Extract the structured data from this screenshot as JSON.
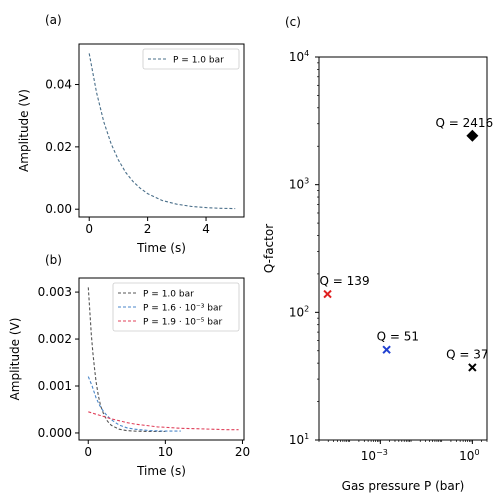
{
  "chart_data": [
    {
      "panel_label": "(a)",
      "type": "line",
      "xlabel": "Time (s)",
      "ylabel": "Amplitude (V)",
      "xlim": [
        -0.35,
        5.3
      ],
      "ylim": [
        -0.0025,
        0.053
      ],
      "xticks": [
        0,
        2,
        4
      ],
      "xtick_labels": [
        "0",
        "2",
        "4"
      ],
      "yticks": [
        0.0,
        0.02,
        0.04
      ],
      "ytick_labels": [
        "0.00",
        "0.02",
        "0.04"
      ],
      "legend_position": "upper-right",
      "series": [
        {
          "name": "P = 1.0 bar",
          "style": "dashed",
          "color": "#4a6f8a",
          "x": [
            0,
            0.25,
            0.5,
            0.75,
            1.0,
            1.25,
            1.5,
            1.75,
            2.0,
            2.5,
            3.0,
            3.5,
            4.0,
            4.5,
            5.0
          ],
          "y": [
            0.05,
            0.0375,
            0.028,
            0.021,
            0.0158,
            0.0118,
            0.0089,
            0.0067,
            0.005,
            0.0028,
            0.0016,
            0.0009,
            0.0005,
            0.0003,
            0.0002
          ]
        }
      ]
    },
    {
      "panel_label": "(b)",
      "type": "line",
      "xlabel": "Time (s)",
      "ylabel": "Amplitude (V)",
      "xlim": [
        -1.2,
        20.2
      ],
      "ylim": [
        -0.00015,
        0.0033
      ],
      "xticks": [
        0,
        10,
        20
      ],
      "xtick_labels": [
        "0",
        "10",
        "20"
      ],
      "yticks": [
        0.0,
        0.001,
        0.002,
        0.003
      ],
      "ytick_labels": [
        "0.000",
        "0.001",
        "0.002",
        "0.003"
      ],
      "legend_position": "upper-right",
      "series": [
        {
          "name": "P = 1.0 bar",
          "style": "dashed",
          "color": "#555555",
          "x": [
            0,
            0.2,
            0.4,
            0.6,
            0.8,
            1.0,
            1.3,
            1.6,
            2.0,
            2.5,
            3.0,
            4.0,
            5.0,
            6.0,
            8.0,
            10.0
          ],
          "y": [
            0.0031,
            0.0026,
            0.0021,
            0.0017,
            0.0014,
            0.0011,
            0.0008,
            0.00058,
            0.0004,
            0.00025,
            0.00016,
            8e-05,
            5e-05,
            4e-05,
            3e-05,
            3e-05
          ]
        },
        {
          "name": "P = 1.6 · 10⁻³ bar",
          "style": "dashed",
          "color": "#4a86c8",
          "x": [
            0,
            0.5,
            1.0,
            1.5,
            2.0,
            2.5,
            3.0,
            4.0,
            5.0,
            6.0,
            8.0,
            10.0,
            12.0
          ],
          "y": [
            0.0012,
            0.001,
            0.00075,
            0.00058,
            0.00045,
            0.00036,
            0.00028,
            0.00017,
            0.00011,
            8e-05,
            5e-05,
            4e-05,
            4e-05
          ]
        },
        {
          "name": "P = 1.9 · 10⁻⁵ bar",
          "style": "dashed",
          "color": "#e0405a",
          "x": [
            0,
            1,
            2,
            3,
            4,
            5,
            6,
            7,
            8,
            9,
            10,
            12,
            14,
            16,
            18,
            19.5
          ],
          "y": [
            0.00045,
            0.0004,
            0.00035,
            0.0003,
            0.00026,
            0.00022,
            0.00019,
            0.00017,
            0.00015,
            0.00013,
            0.00012,
            0.0001,
            9e-05,
            8e-05,
            7e-05,
            7e-05
          ]
        }
      ]
    },
    {
      "panel_label": "(c)",
      "type": "scatter",
      "xlabel": "Gas pressure P (bar)",
      "ylabel": "Q-factor",
      "xscale": "log",
      "yscale": "log",
      "xlim": [
        1e-05,
        3.0
      ],
      "ylim": [
        10,
        10000
      ],
      "xticks": [
        0.001,
        1
      ],
      "yticks": [
        10,
        100,
        1000,
        10000
      ],
      "ytick_labels": [
        "10¹",
        "10²",
        "10³",
        "10⁴"
      ],
      "points": [
        {
          "x": 1.9e-05,
          "y": 139,
          "label": "Q = 139",
          "marker": "x",
          "color": "#e02020"
        },
        {
          "x": 0.0016,
          "y": 51,
          "label": "Q = 51",
          "marker": "x",
          "color": "#2040d0"
        },
        {
          "x": 1.0,
          "y": 37,
          "label": "Q = 37",
          "marker": "x",
          "color": "#000000"
        },
        {
          "x": 1.0,
          "y": 2416,
          "label": "Q = 2416",
          "marker": "diamond",
          "color": "#000000"
        }
      ]
    }
  ]
}
